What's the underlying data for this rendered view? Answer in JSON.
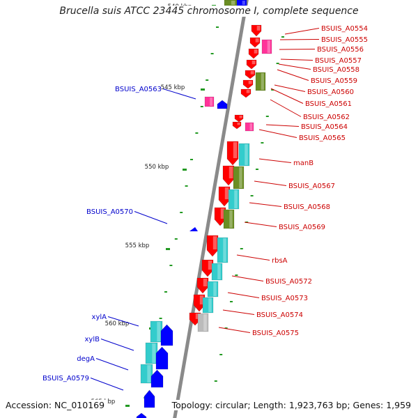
{
  "title": "Brucella suis ATCC 23445 chromosome I, complete sequence",
  "footer": {
    "accession": "Accession: NC_010169",
    "topology": "Topology: circular; Length: 1,923,763 bp; Genes: 1,959"
  },
  "colors": {
    "backbone": "#8a8a8a",
    "label_plus": "#cc0000",
    "label_minus": "#0000cc",
    "cds_red": "#ff0000",
    "cds_pink": "#ff3399",
    "cds_olive": "#6b8e23",
    "cds_cyan": "#33cccc",
    "cds_blue": "#0000ff",
    "cds_grey": "#bbbbbb",
    "tick": "#229922"
  },
  "scale": {
    "unit": "kbp",
    "ticks": [
      {
        "label": "540 kbp",
        "pos": 540
      },
      {
        "label": "545 kbp",
        "pos": 545
      },
      {
        "label": "550 kbp",
        "pos": 550
      },
      {
        "label": "555 kbp",
        "pos": 555
      },
      {
        "label": "560 kbp",
        "pos": 560
      },
      {
        "label": "565 kbp",
        "pos": 565
      }
    ]
  },
  "gene_labels": [
    {
      "name": "BSUIS_A0554",
      "strand": "+"
    },
    {
      "name": "BSUIS_A0555",
      "strand": "+"
    },
    {
      "name": "BSUIS_A0556",
      "strand": "+"
    },
    {
      "name": "BSUIS_A0557",
      "strand": "+"
    },
    {
      "name": "BSUIS_A0558",
      "strand": "+"
    },
    {
      "name": "BSUIS_A0559",
      "strand": "+"
    },
    {
      "name": "BSUIS_A0560",
      "strand": "+"
    },
    {
      "name": "BSUIS_A0561",
      "strand": "+"
    },
    {
      "name": "BSUIS_A0562",
      "strand": "+"
    },
    {
      "name": "BSUIS_A0564",
      "strand": "+"
    },
    {
      "name": "BSUIS_A0565",
      "strand": "+"
    },
    {
      "name": "manB",
      "strand": "+"
    },
    {
      "name": "BSUIS_A0567",
      "strand": "+"
    },
    {
      "name": "BSUIS_A0568",
      "strand": "+"
    },
    {
      "name": "BSUIS_A0569",
      "strand": "+"
    },
    {
      "name": "rbsA",
      "strand": "+"
    },
    {
      "name": "BSUIS_A0572",
      "strand": "+"
    },
    {
      "name": "BSUIS_A0573",
      "strand": "+"
    },
    {
      "name": "BSUIS_A0574",
      "strand": "+"
    },
    {
      "name": "BSUIS_A0575",
      "strand": "+"
    },
    {
      "name": "BSUIS_A0563",
      "strand": "-"
    },
    {
      "name": "BSUIS_A0570",
      "strand": "-"
    },
    {
      "name": "xylA",
      "strand": "-"
    },
    {
      "name": "xylB",
      "strand": "-"
    },
    {
      "name": "degA",
      "strand": "-"
    },
    {
      "name": "BSUIS_A0579",
      "strand": "-"
    }
  ]
}
